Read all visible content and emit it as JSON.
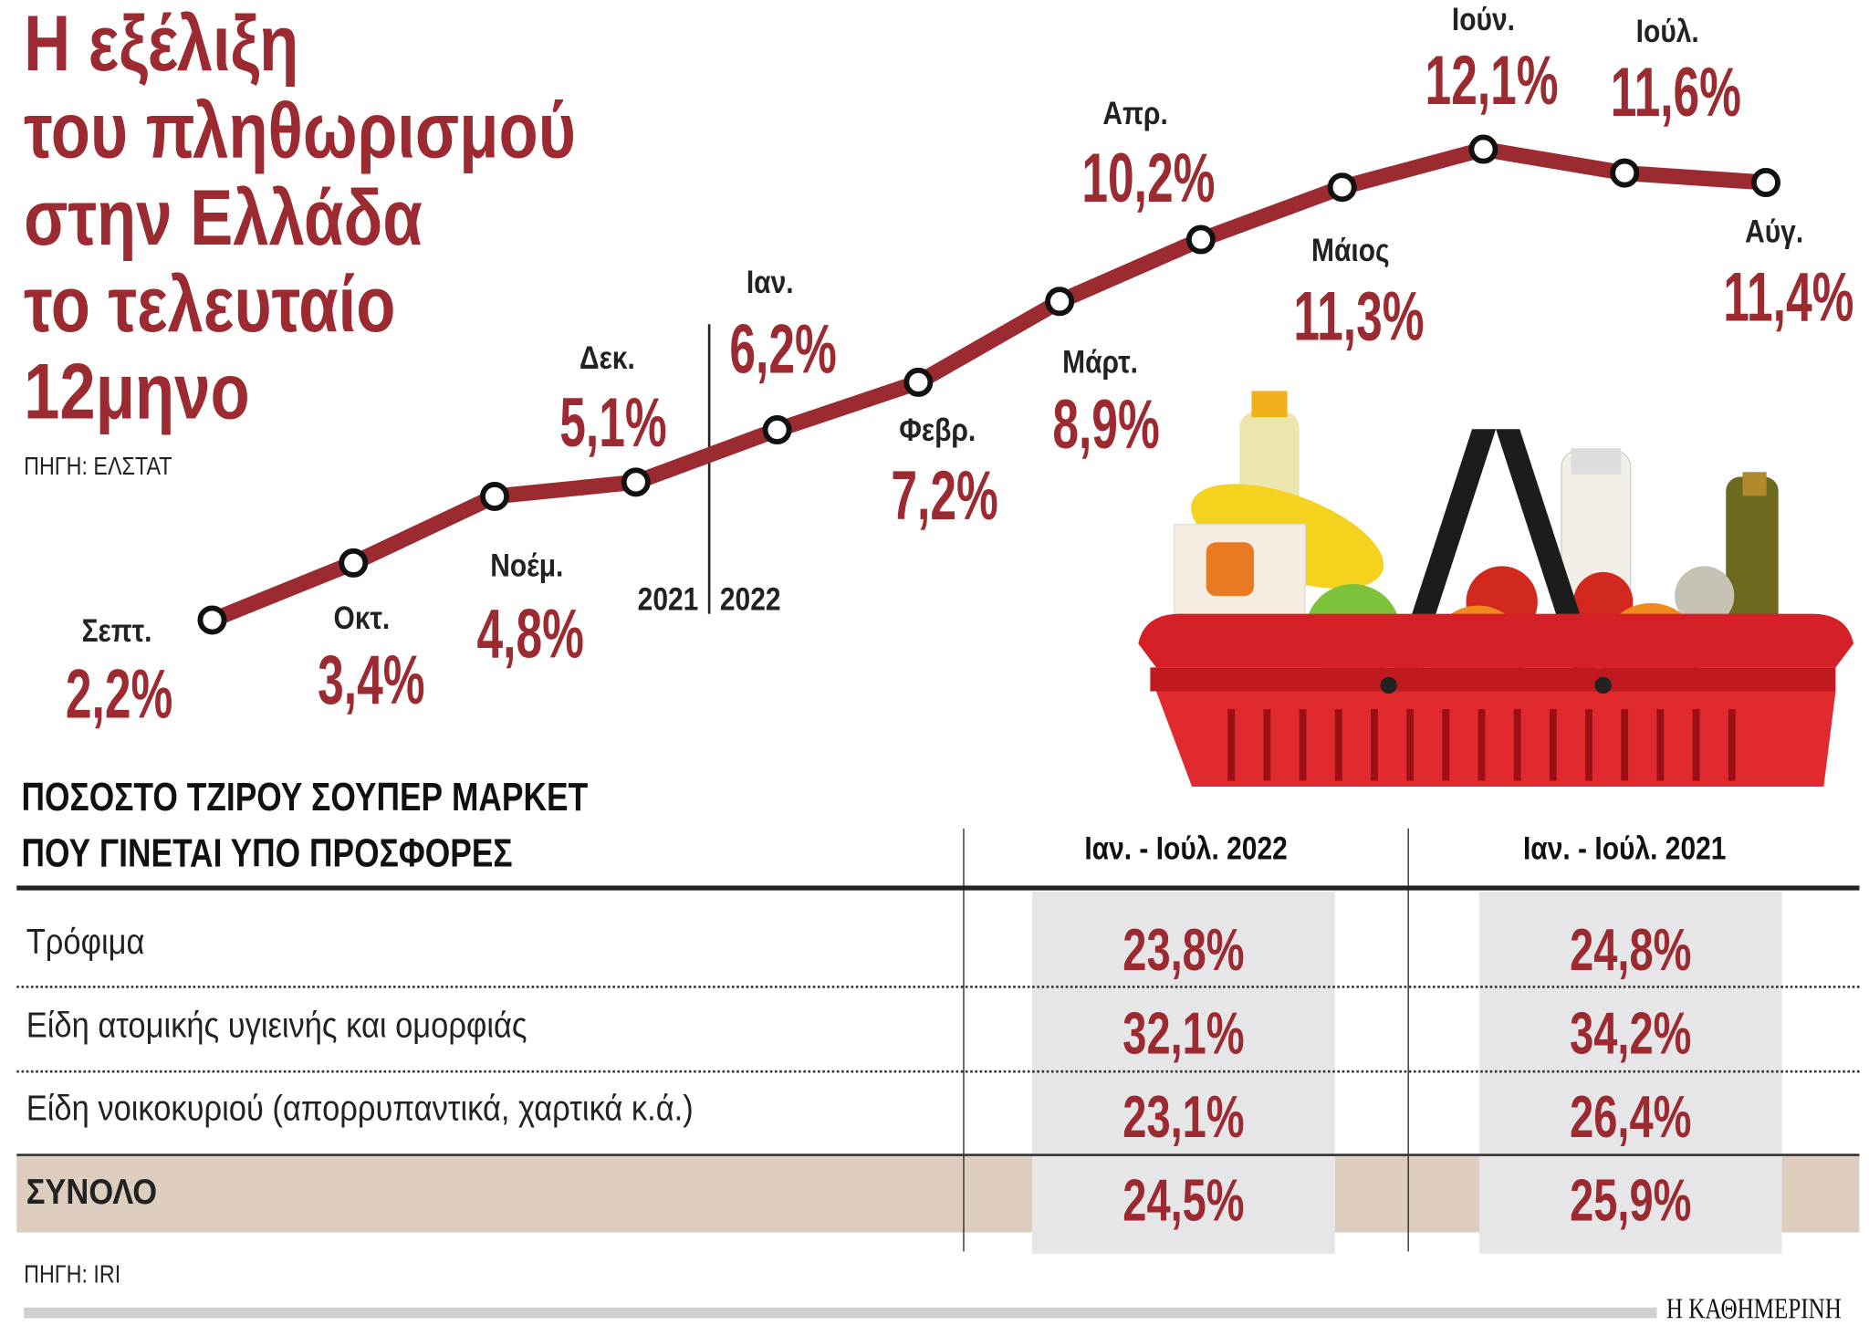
{
  "title_lines": [
    "Η εξέλιξη",
    "του πληθωρισμού",
    "στην Ελλάδα",
    "το τελευταίο",
    "12μηνο"
  ],
  "chart_source": "ΠΗΓΗ: ΕΛΣΤΑΤ",
  "chart_data": {
    "type": "line",
    "categories": [
      "Σεπτ.",
      "Οκτ.",
      "Νοέμ.",
      "Δεκ.",
      "Ιαν.",
      "Φεβρ.",
      "Μάρτ.",
      "Απρ.",
      "Μάιος",
      "Ιούν.",
      "Ιούλ.",
      "Αύγ."
    ],
    "values": [
      2.2,
      3.4,
      4.8,
      5.1,
      6.2,
      7.2,
      8.9,
      10.2,
      11.3,
      12.1,
      11.6,
      11.4
    ],
    "value_labels": [
      "2,2%",
      "3,4%",
      "4,8%",
      "5,1%",
      "6,2%",
      "7,2%",
      "8,9%",
      "10,2%",
      "11,3%",
      "12,1%",
      "11,6%",
      "11,4%"
    ],
    "year_labels": [
      "2021",
      "2022"
    ],
    "line_color": "#9b2a31",
    "grid": false,
    "legend": "none"
  },
  "table": {
    "title_lines": [
      "ΠΟΣΟΣΤΟ ΤΖΙΡΟΥ ΣΟΥΠΕΡ ΜΑΡΚΕΤ",
      "ΠΟΥ ΓΙΝΕΤΑΙ ΥΠΟ ΠΡΟΣΦΟΡΕΣ"
    ],
    "columns": [
      "Ιαν. - Ιούλ. 2022",
      "Ιαν. - Ιούλ. 2021"
    ],
    "rows": [
      {
        "label": "Τρόφιμα",
        "values": [
          "23,8%",
          "24,8%"
        ]
      },
      {
        "label": "Είδη ατομικής υγιεινής και ομορφιάς",
        "values": [
          "32,1%",
          "34,2%"
        ]
      },
      {
        "label": "Είδη νοικοκυριού (απορρυπαντικά, χαρτικά κ.ά.)",
        "values": [
          "23,1%",
          "26,4%"
        ]
      },
      {
        "label": "ΣΥΝΟΛΟ",
        "values": [
          "24,5%",
          "25,9%"
        ]
      }
    ],
    "source": "ΠΗΓΗ: IRI"
  },
  "brand": "Η ΚΑΘΗΜΕΡΙΝΗ"
}
